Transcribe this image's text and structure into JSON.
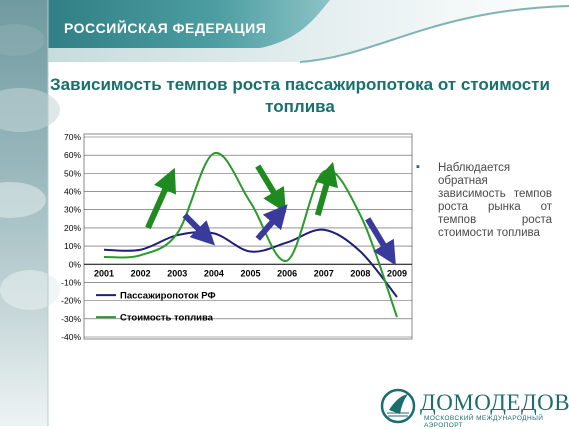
{
  "header": {
    "title": "РОССИЙСКАЯ ФЕДЕРАЦИЯ"
  },
  "slide": {
    "title": "Зависимость темпов роста пассажиропотока от стоимости топлива"
  },
  "bullet": {
    "text": "Наблюдается обратная зависимость темпов роста рынка от темпов роста стоимости топлива"
  },
  "logo": {
    "name": "ДОМОДЕДОВО",
    "subtitle": "МОСКОВСКИЙ МЕЖДУНАРОДНЫЙ АЭРОПОРТ"
  },
  "colors": {
    "header_teal": "#3c8f93",
    "title_teal": "#1a6f6f",
    "series_passengers": "#1f1f7a",
    "series_fuel": "#2a9a2a",
    "arrow_green": "#1f8a1f",
    "arrow_blue": "#3a3a9a"
  },
  "chart_data": {
    "type": "line",
    "title": "",
    "xlabel": "",
    "ylabel": "",
    "categories": [
      "2001",
      "2002",
      "2003",
      "2004",
      "2005",
      "2006",
      "2007",
      "2008",
      "2009"
    ],
    "y_tick_labels": [
      "70%",
      "60%",
      "50%",
      "40%",
      "30%",
      "20%",
      "10%",
      "0%",
      "-10%",
      "-20%",
      "-30%",
      "-40%"
    ],
    "ylim": [
      -40,
      70
    ],
    "grid": true,
    "legend": "inside-bottom-left",
    "series": [
      {
        "name": "Пассажиропоток РФ",
        "color": "#1f1f7a",
        "values": [
          8,
          8,
          16,
          17,
          7,
          12,
          19,
          7,
          -18
        ]
      },
      {
        "name": "Стоимость топлива",
        "color": "#2a9a2a",
        "values": [
          4,
          5,
          17,
          61,
          34,
          2,
          51,
          27,
          -29
        ]
      }
    ],
    "annotations": [
      {
        "kind": "up-arrow",
        "from": [
          "2002",
          20
        ],
        "to": [
          "2003",
          47
        ],
        "color": "green"
      },
      {
        "kind": "down-arrow",
        "from": [
          "2003",
          27
        ],
        "to": [
          "2004",
          15
        ],
        "color": "blue"
      },
      {
        "kind": "down-arrow",
        "from": [
          "2005",
          54
        ],
        "to": [
          "2006",
          34
        ],
        "color": "green"
      },
      {
        "kind": "up-arrow",
        "from": [
          "2005",
          14
        ],
        "to": [
          "2006",
          28
        ],
        "color": "blue"
      },
      {
        "kind": "up-arrow",
        "from": [
          "2007",
          27
        ],
        "to": [
          "2007",
          50
        ],
        "color": "green"
      },
      {
        "kind": "down-arrow",
        "from": [
          "2008",
          25
        ],
        "to": [
          "2009",
          5
        ],
        "color": "blue"
      }
    ]
  }
}
